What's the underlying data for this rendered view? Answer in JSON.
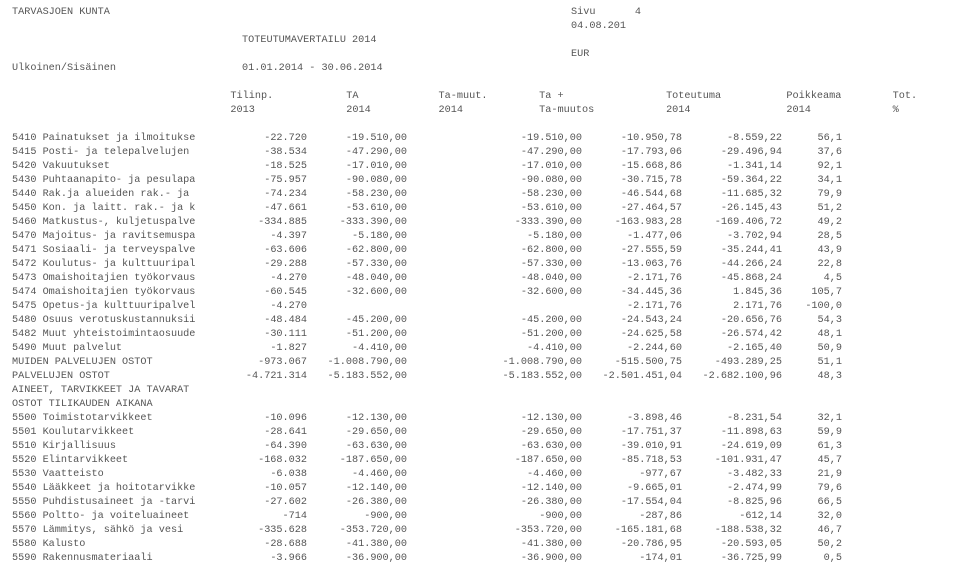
{
  "header": {
    "org": "TARVASJOEN KUNTA",
    "page_label": "Sivu",
    "page_no": "4",
    "date": "04.08.201",
    "title": "TOTEUTUMAVERTAILU 2014",
    "currency": "EUR",
    "scope_label": "Ulkoinen/Sisäinen",
    "period": "01.01.2014 - 30.06.2014",
    "col1a": "Tilinp.",
    "col1b": "2013",
    "col2a": "TA",
    "col2b": "2014",
    "col3a": "Ta-muut.",
    "col3b": "2014",
    "col4a": "Ta +",
    "col4b": "Ta-muutos",
    "col5a": "Toteutuma",
    "col5b": "2014",
    "col6a": "Poikkeama",
    "col6b": "2014",
    "col7a": "Tot.",
    "col7b": "%"
  },
  "rows": [
    {
      "desc": "5410 Painatukset ja ilmoitukse",
      "tilinp": "-22.720",
      "ta": "-19.510,00",
      "tamuut": "",
      "taplus": "-19.510,00",
      "tot": "-10.950,78",
      "poik": "-8.559,22",
      "pct": "56,1"
    },
    {
      "desc": "5415 Posti- ja telepalvelujen",
      "tilinp": "-38.534",
      "ta": "-47.290,00",
      "tamuut": "",
      "taplus": "-47.290,00",
      "tot": "-17.793,06",
      "poik": "-29.496,94",
      "pct": "37,6"
    },
    {
      "desc": "5420 Vakuutukset",
      "tilinp": "-18.525",
      "ta": "-17.010,00",
      "tamuut": "",
      "taplus": "-17.010,00",
      "tot": "-15.668,86",
      "poik": "-1.341,14",
      "pct": "92,1"
    },
    {
      "desc": "5430 Puhtaanapito- ja pesulapa",
      "tilinp": "-75.957",
      "ta": "-90.080,00",
      "tamuut": "",
      "taplus": "-90.080,00",
      "tot": "-30.715,78",
      "poik": "-59.364,22",
      "pct": "34,1"
    },
    {
      "desc": "5440 Rak.ja alueiden rak.- ja",
      "tilinp": "-74.234",
      "ta": "-58.230,00",
      "tamuut": "",
      "taplus": "-58.230,00",
      "tot": "-46.544,68",
      "poik": "-11.685,32",
      "pct": "79,9"
    },
    {
      "desc": "5450 Kon. ja laitt. rak.- ja k",
      "tilinp": "-47.661",
      "ta": "-53.610,00",
      "tamuut": "",
      "taplus": "-53.610,00",
      "tot": "-27.464,57",
      "poik": "-26.145,43",
      "pct": "51,2"
    },
    {
      "desc": "5460 Matkustus-, kuljetuspalve",
      "tilinp": "-334.885",
      "ta": "-333.390,00",
      "tamuut": "",
      "taplus": "-333.390,00",
      "tot": "-163.983,28",
      "poik": "-169.406,72",
      "pct": "49,2"
    },
    {
      "desc": "5470 Majoitus- ja ravitsemuspa",
      "tilinp": "-4.397",
      "ta": "-5.180,00",
      "tamuut": "",
      "taplus": "-5.180,00",
      "tot": "-1.477,06",
      "poik": "-3.702,94",
      "pct": "28,5"
    },
    {
      "desc": "5471 Sosiaali- ja terveyspalve",
      "tilinp": "-63.606",
      "ta": "-62.800,00",
      "tamuut": "",
      "taplus": "-62.800,00",
      "tot": "-27.555,59",
      "poik": "-35.244,41",
      "pct": "43,9"
    },
    {
      "desc": "5472 Koulutus- ja kulttuuripal",
      "tilinp": "-29.288",
      "ta": "-57.330,00",
      "tamuut": "",
      "taplus": "-57.330,00",
      "tot": "-13.063,76",
      "poik": "-44.266,24",
      "pct": "22,8"
    },
    {
      "desc": "5473 Omaishoitajien työkorvaus",
      "tilinp": "-4.270",
      "ta": "-48.040,00",
      "tamuut": "",
      "taplus": "-48.040,00",
      "tot": "-2.171,76",
      "poik": "-45.868,24",
      "pct": "4,5"
    },
    {
      "desc": "5474 Omaishoitajien työkorvaus",
      "tilinp": "-60.545",
      "ta": "-32.600,00",
      "tamuut": "",
      "taplus": "-32.600,00",
      "tot": "-34.445,36",
      "poik": "1.845,36",
      "pct": "105,7"
    },
    {
      "desc": "5475 Opetus-ja kulttuuripalvel",
      "tilinp": "-4.270",
      "ta": "",
      "tamuut": "",
      "taplus": "",
      "tot": "-2.171,76",
      "poik": "2.171,76",
      "pct": "-100,0"
    },
    {
      "desc": "5480 Osuus verotuskustannuksii",
      "tilinp": "-48.484",
      "ta": "-45.200,00",
      "tamuut": "",
      "taplus": "-45.200,00",
      "tot": "-24.543,24",
      "poik": "-20.656,76",
      "pct": "54,3"
    },
    {
      "desc": "5482 Muut yhteistoimintaosuude",
      "tilinp": "-30.111",
      "ta": "-51.200,00",
      "tamuut": "",
      "taplus": "-51.200,00",
      "tot": "-24.625,58",
      "poik": "-26.574,42",
      "pct": "48,1"
    },
    {
      "desc": "5490 Muut palvelut",
      "tilinp": "-1.827",
      "ta": "-4.410,00",
      "tamuut": "",
      "taplus": "-4.410,00",
      "tot": "-2.244,60",
      "poik": "-2.165,40",
      "pct": "50,9"
    },
    {
      "desc": "MUIDEN PALVELUJEN OSTOT",
      "tilinp": "-973.067",
      "ta": "-1.008.790,00",
      "tamuut": "",
      "taplus": "-1.008.790,00",
      "tot": "-515.500,75",
      "poik": "-493.289,25",
      "pct": "51,1"
    },
    {
      "desc": "PALVELUJEN OSTOT",
      "tilinp": "-4.721.314",
      "ta": "-5.183.552,00",
      "tamuut": "",
      "taplus": "-5.183.552,00",
      "tot": "-2.501.451,04",
      "poik": "-2.682.100,96",
      "pct": "48,3"
    },
    {
      "desc": "AINEET, TARVIKKEET JA TAVARAT",
      "tilinp": "",
      "ta": "",
      "tamuut": "",
      "taplus": "",
      "tot": "",
      "poik": "",
      "pct": ""
    },
    {
      "desc": "OSTOT TILIKAUDEN AIKANA",
      "tilinp": "",
      "ta": "",
      "tamuut": "",
      "taplus": "",
      "tot": "",
      "poik": "",
      "pct": ""
    },
    {
      "desc": "5500 Toimistotarvikkeet",
      "tilinp": "-10.096",
      "ta": "-12.130,00",
      "tamuut": "",
      "taplus": "-12.130,00",
      "tot": "-3.898,46",
      "poik": "-8.231,54",
      "pct": "32,1"
    },
    {
      "desc": "5501 Koulutarvikkeet",
      "tilinp": "-28.641",
      "ta": "-29.650,00",
      "tamuut": "",
      "taplus": "-29.650,00",
      "tot": "-17.751,37",
      "poik": "-11.898,63",
      "pct": "59,9"
    },
    {
      "desc": "5510 Kirjallisuus",
      "tilinp": "-64.390",
      "ta": "-63.630,00",
      "tamuut": "",
      "taplus": "-63.630,00",
      "tot": "-39.010,91",
      "poik": "-24.619,09",
      "pct": "61,3"
    },
    {
      "desc": "5520 Elintarvikkeet",
      "tilinp": "-168.032",
      "ta": "-187.650,00",
      "tamuut": "",
      "taplus": "-187.650,00",
      "tot": "-85.718,53",
      "poik": "-101.931,47",
      "pct": "45,7"
    },
    {
      "desc": "5530 Vaatteisto",
      "tilinp": "-6.038",
      "ta": "-4.460,00",
      "tamuut": "",
      "taplus": "-4.460,00",
      "tot": "-977,67",
      "poik": "-3.482,33",
      "pct": "21,9"
    },
    {
      "desc": "5540 Lääkkeet ja hoitotarvikke",
      "tilinp": "-10.057",
      "ta": "-12.140,00",
      "tamuut": "",
      "taplus": "-12.140,00",
      "tot": "-9.665,01",
      "poik": "-2.474,99",
      "pct": "79,6"
    },
    {
      "desc": "5550 Puhdistusaineet ja -tarvi",
      "tilinp": "-27.602",
      "ta": "-26.380,00",
      "tamuut": "",
      "taplus": "-26.380,00",
      "tot": "-17.554,04",
      "poik": "-8.825,96",
      "pct": "66,5"
    },
    {
      "desc": "5560 Poltto- ja voiteluaineet",
      "tilinp": "-714",
      "ta": "-900,00",
      "tamuut": "",
      "taplus": "-900,00",
      "tot": "-287,86",
      "poik": "-612,14",
      "pct": "32,0"
    },
    {
      "desc": "5570 Lämmitys, sähkö ja vesi",
      "tilinp": "-335.628",
      "ta": "-353.720,00",
      "tamuut": "",
      "taplus": "-353.720,00",
      "tot": "-165.181,68",
      "poik": "-188.538,32",
      "pct": "46,7"
    },
    {
      "desc": "5580 Kalusto",
      "tilinp": "-28.688",
      "ta": "-41.380,00",
      "tamuut": "",
      "taplus": "-41.380,00",
      "tot": "-20.786,95",
      "poik": "-20.593,05",
      "pct": "50,2"
    },
    {
      "desc": "5590 Rakennusmateriaali",
      "tilinp": "-3.966",
      "ta": "-36.900,00",
      "tamuut": "",
      "taplus": "-36.900,00",
      "tot": "-174,01",
      "poik": "-36.725,99",
      "pct": "0,5"
    }
  ]
}
